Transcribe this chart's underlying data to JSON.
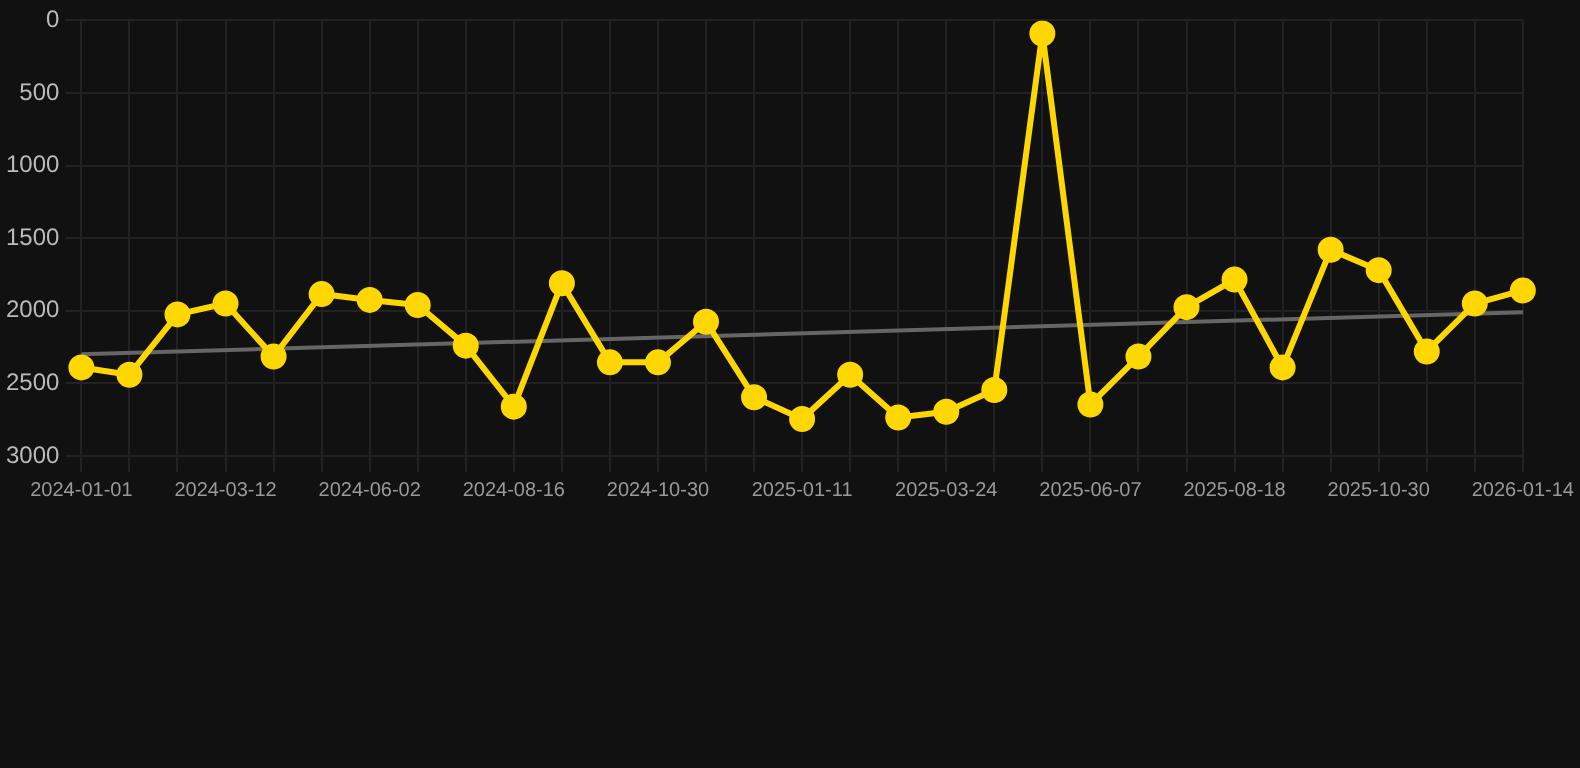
{
  "chart_data": {
    "type": "line",
    "categories": [
      "2024-01-01",
      null,
      null,
      "2024-03-12",
      null,
      null,
      "2024-06-02",
      null,
      null,
      "2024-08-16",
      null,
      null,
      "2024-10-30",
      null,
      null,
      "2025-01-11",
      null,
      null,
      "2025-03-24",
      null,
      null,
      "2025-06-07",
      null,
      null,
      "2025-08-18",
      null,
      null,
      "2025-10-30",
      null,
      null,
      "2026-01-14"
    ],
    "series": [
      {
        "color": "#ffd700",
        "marker": "circle",
        "values": [
          2390,
          2440,
          2025,
          1950,
          2315,
          1885,
          1925,
          1960,
          2240,
          2660,
          1810,
          2355,
          2355,
          2075,
          2595,
          2745,
          2440,
          2735,
          2695,
          2545,
          90,
          2645,
          2315,
          1975,
          1785,
          2390,
          1580,
          1720,
          2280,
          1950,
          1860
        ]
      },
      {
        "color": "#666666",
        "marker": "none",
        "values": [
          2300,
          null,
          null,
          null,
          null,
          null,
          null,
          null,
          null,
          null,
          null,
          null,
          null,
          null,
          null,
          null,
          null,
          null,
          null,
          null,
          null,
          null,
          null,
          null,
          null,
          null,
          null,
          null,
          null,
          null,
          2010
        ]
      }
    ],
    "ylim": [
      3000,
      0
    ],
    "yticks": [
      0,
      500,
      1000,
      1500,
      2000,
      2500,
      3000
    ],
    "grid": true
  }
}
